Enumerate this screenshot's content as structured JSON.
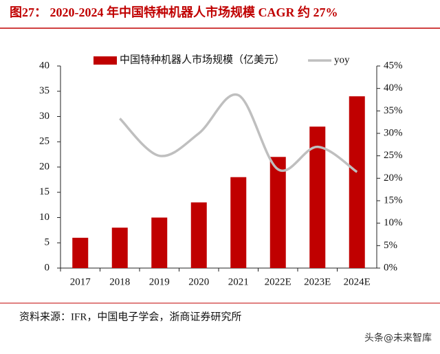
{
  "chart_data": {
    "type": "bar_line",
    "title": "图27： 2020-2024 年中国特种机器人市场规模 CAGR 约 27%",
    "source": "资料来源：IFR，中国电子学会，浙商证券研究所",
    "watermark": "头条@未来智库",
    "categories": [
      "2017",
      "2018",
      "2019",
      "2020",
      "2021",
      "2022E",
      "2023E",
      "2024E"
    ],
    "series": [
      {
        "name": "中国特种机器人市场规模（亿美元）",
        "type": "bar",
        "color": "#c00000",
        "values": [
          6,
          8,
          10,
          13,
          18,
          22,
          28,
          34
        ]
      },
      {
        "name": "yoy",
        "type": "line",
        "axis": "y2",
        "color": "#bfbfbf",
        "values": [
          null,
          33.3,
          25,
          30,
          38.5,
          22,
          27,
          21.4
        ]
      }
    ],
    "ylim": [
      0,
      40
    ],
    "yticks": [
      0,
      5,
      10,
      15,
      20,
      25,
      30,
      35,
      40
    ],
    "y2lim": [
      0,
      45
    ],
    "y2ticks": [
      {
        "value": 0,
        "label": "0%"
      },
      {
        "value": 5,
        "label": "5%"
      },
      {
        "value": 10,
        "label": "10%"
      },
      {
        "value": 15,
        "label": "15%"
      },
      {
        "value": 20,
        "label": "20%"
      },
      {
        "value": 25,
        "label": "25%"
      },
      {
        "value": 30,
        "label": "30%"
      },
      {
        "value": 35,
        "label": "35%"
      },
      {
        "value": 40,
        "label": "40%"
      },
      {
        "value": 45,
        "label": "45%"
      }
    ],
    "grid": false
  }
}
